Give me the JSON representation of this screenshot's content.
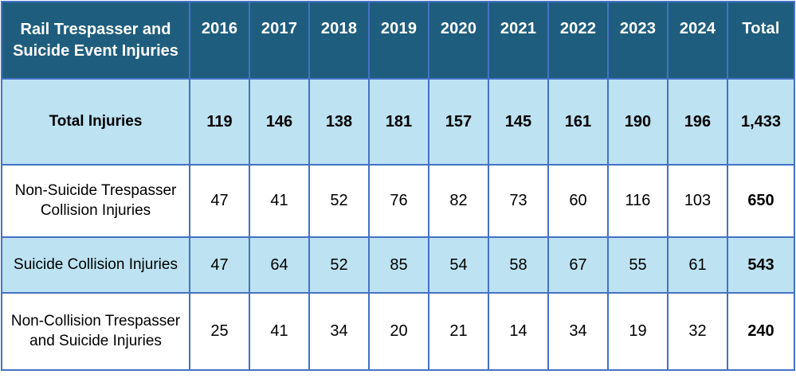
{
  "table": {
    "corner_label": "Rail Trespasser and Suicide Event Injuries",
    "columns": [
      "2016",
      "2017",
      "2018",
      "2019",
      "2020",
      "2021",
      "2022",
      "2023",
      "2024",
      "Total"
    ],
    "rows": [
      {
        "label": "Total Injuries",
        "values": [
          "119",
          "146",
          "138",
          "181",
          "157",
          "145",
          "161",
          "190",
          "196",
          "1,433"
        ]
      },
      {
        "label": "Non-Suicide Trespasser Collision Injuries",
        "values": [
          "47",
          "41",
          "52",
          "76",
          "82",
          "73",
          "60",
          "116",
          "103",
          "650"
        ]
      },
      {
        "label": "Suicide Collision Injuries",
        "values": [
          "47",
          "64",
          "52",
          "85",
          "54",
          "58",
          "67",
          "55",
          "61",
          "543"
        ]
      },
      {
        "label": "Non-Collision Trespasser and Suicide Injuries",
        "values": [
          "25",
          "41",
          "34",
          "20",
          "21",
          "14",
          "34",
          "19",
          "32",
          "240"
        ]
      }
    ],
    "colors": {
      "header_bg": "#1F5D7E",
      "header_text": "#FFFFFF",
      "shaded_row_bg": "#BDE2F2",
      "grid_line": "#4472C4",
      "outer_border": "#2F5496",
      "body_text": "#000000"
    }
  }
}
